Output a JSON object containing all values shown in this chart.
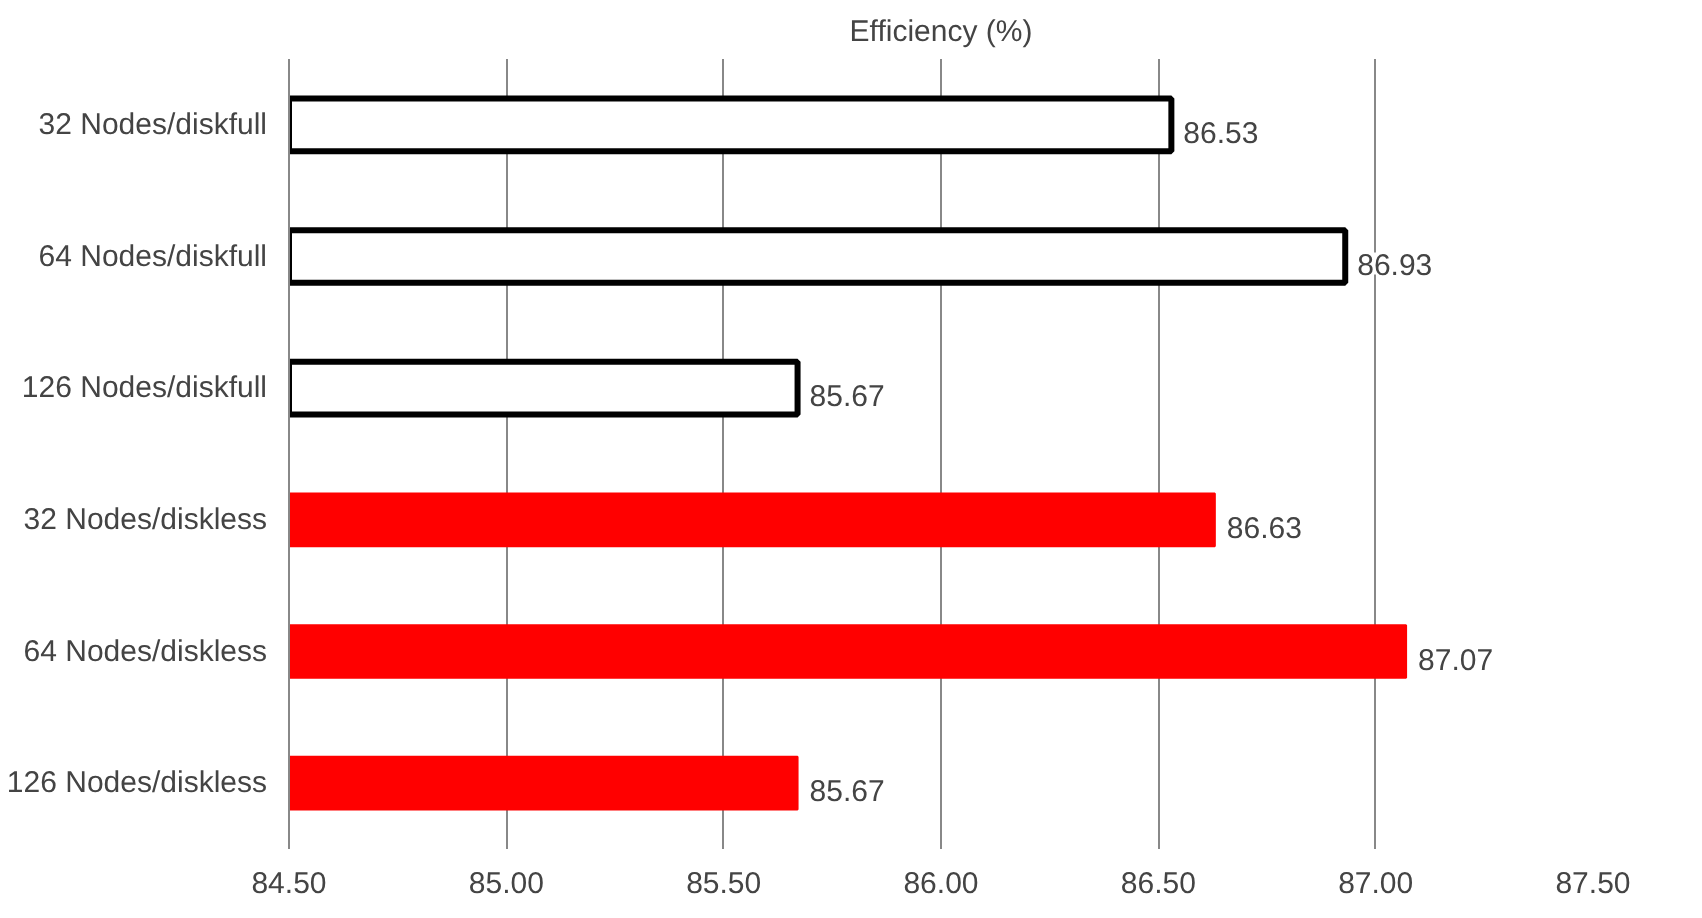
{
  "chart_data": {
    "type": "bar",
    "orientation": "horizontal",
    "title": "Efficiency (%)",
    "categories": [
      "32 Nodes/diskfull",
      "64 Nodes/diskfull",
      "126 Nodes/diskfull",
      "32 Nodes/diskless",
      "64 Nodes/diskless",
      "126 Nodes/diskless"
    ],
    "values": [
      86.53,
      86.93,
      85.67,
      86.63,
      87.07,
      85.67
    ],
    "colors": [
      "#ffffff",
      "#ffffff",
      "#ffffff",
      "#ff0000",
      "#ff0000",
      "#ff0000"
    ],
    "xlim": [
      84.5,
      87.5
    ],
    "xticks": [
      {
        "value": 84.5,
        "label": "84.50"
      },
      {
        "value": 85.0,
        "label": "85.00"
      },
      {
        "value": 85.5,
        "label": "85.50"
      },
      {
        "value": 86.0,
        "label": "86.00"
      },
      {
        "value": 86.5,
        "label": "86.50"
      },
      {
        "value": 87.0,
        "label": "87.00"
      },
      {
        "value": 87.5,
        "label": "87.50"
      }
    ],
    "grid": "x",
    "data_labels": true
  }
}
